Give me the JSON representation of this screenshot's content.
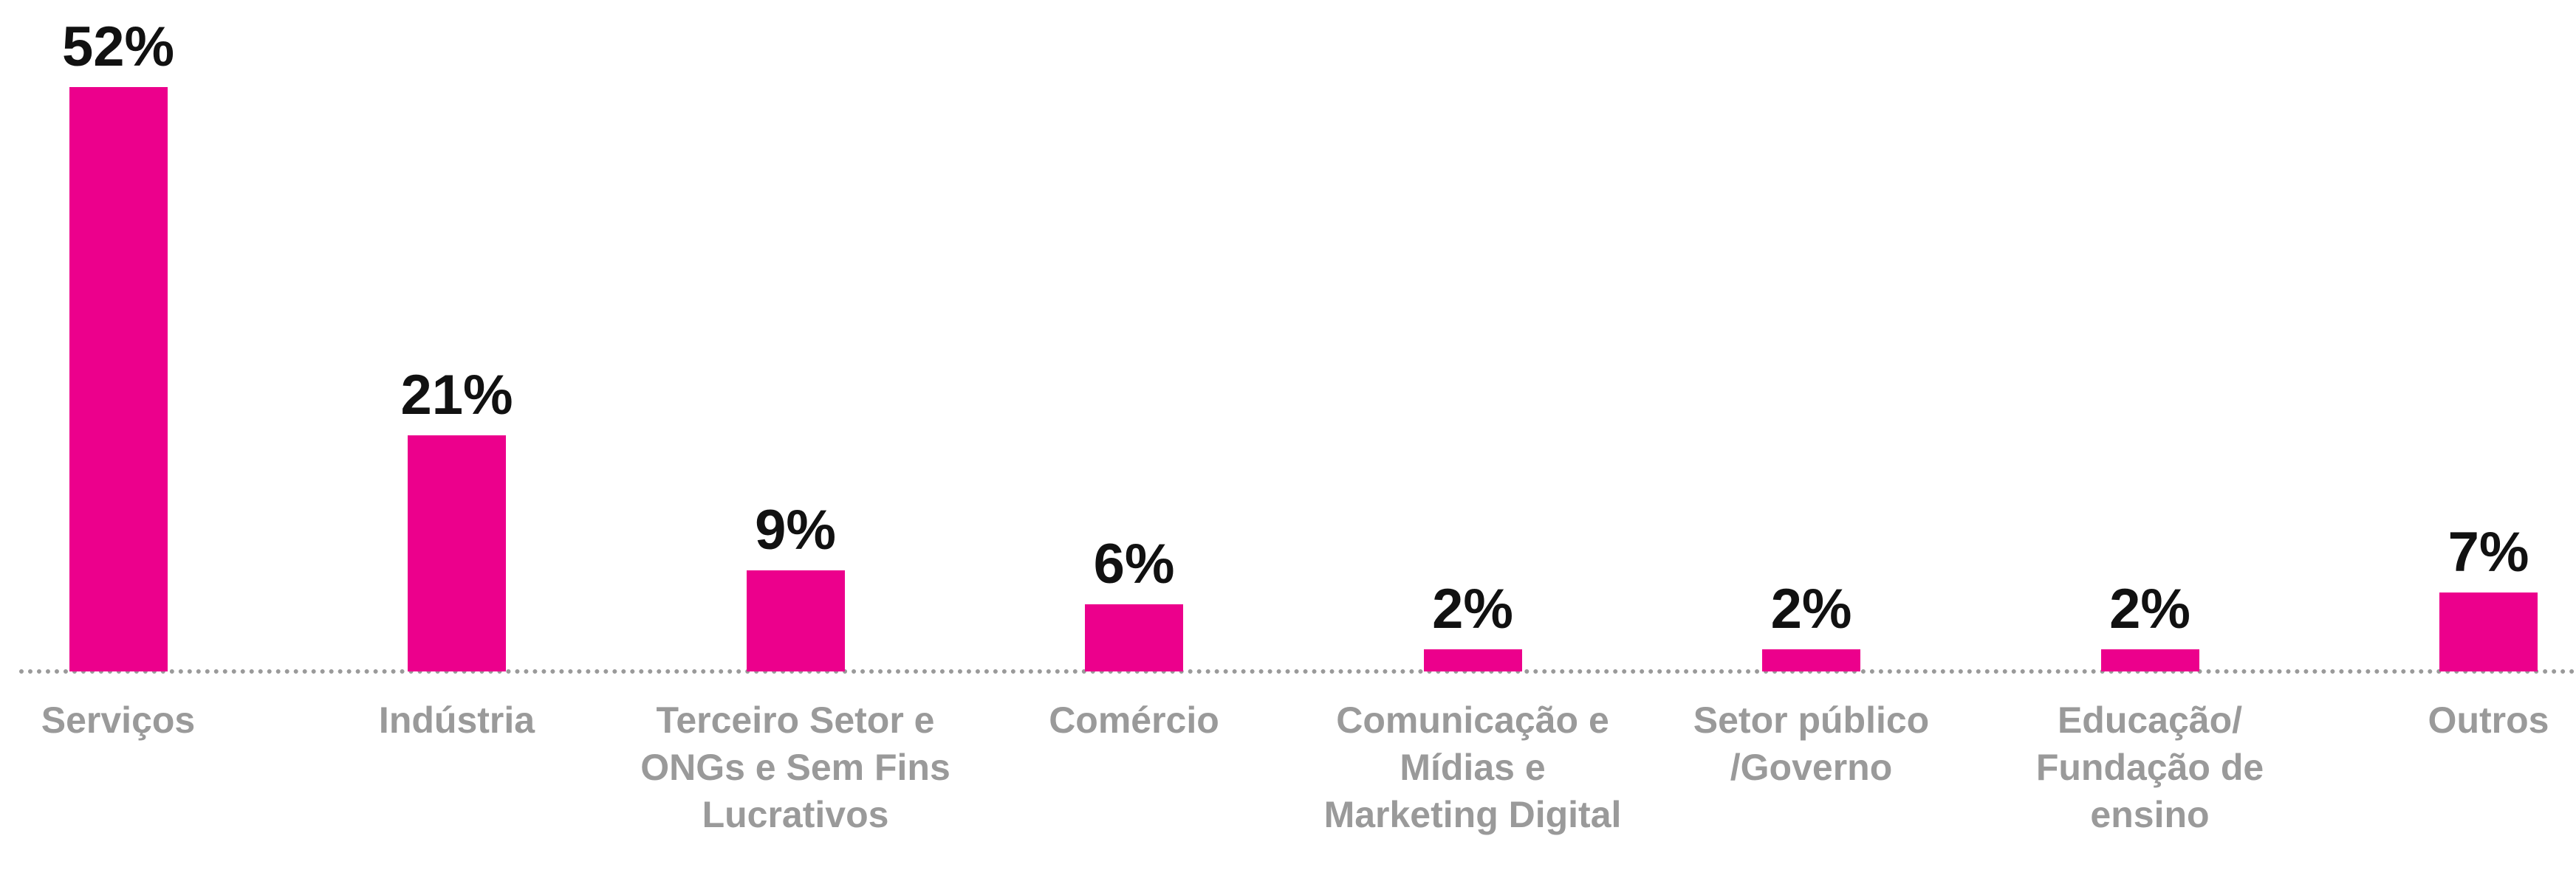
{
  "chart_data": {
    "type": "bar",
    "categories": [
      "Serviços",
      "Indústria",
      "Terceiro Setor e ONGs e Sem Fins Lucrativos",
      "Comércio",
      "Comunicação e Mídias e Marketing Digital",
      "Setor público /Governo",
      "Educação/ Fundação de ensino",
      "Outros"
    ],
    "values": [
      52,
      21,
      9,
      6,
      2,
      2,
      2,
      7
    ],
    "value_labels": [
      "52%",
      "21%",
      "9%",
      "6%",
      "2%",
      "2%",
      "2%",
      "7%"
    ],
    "color": "#ec008c"
  }
}
